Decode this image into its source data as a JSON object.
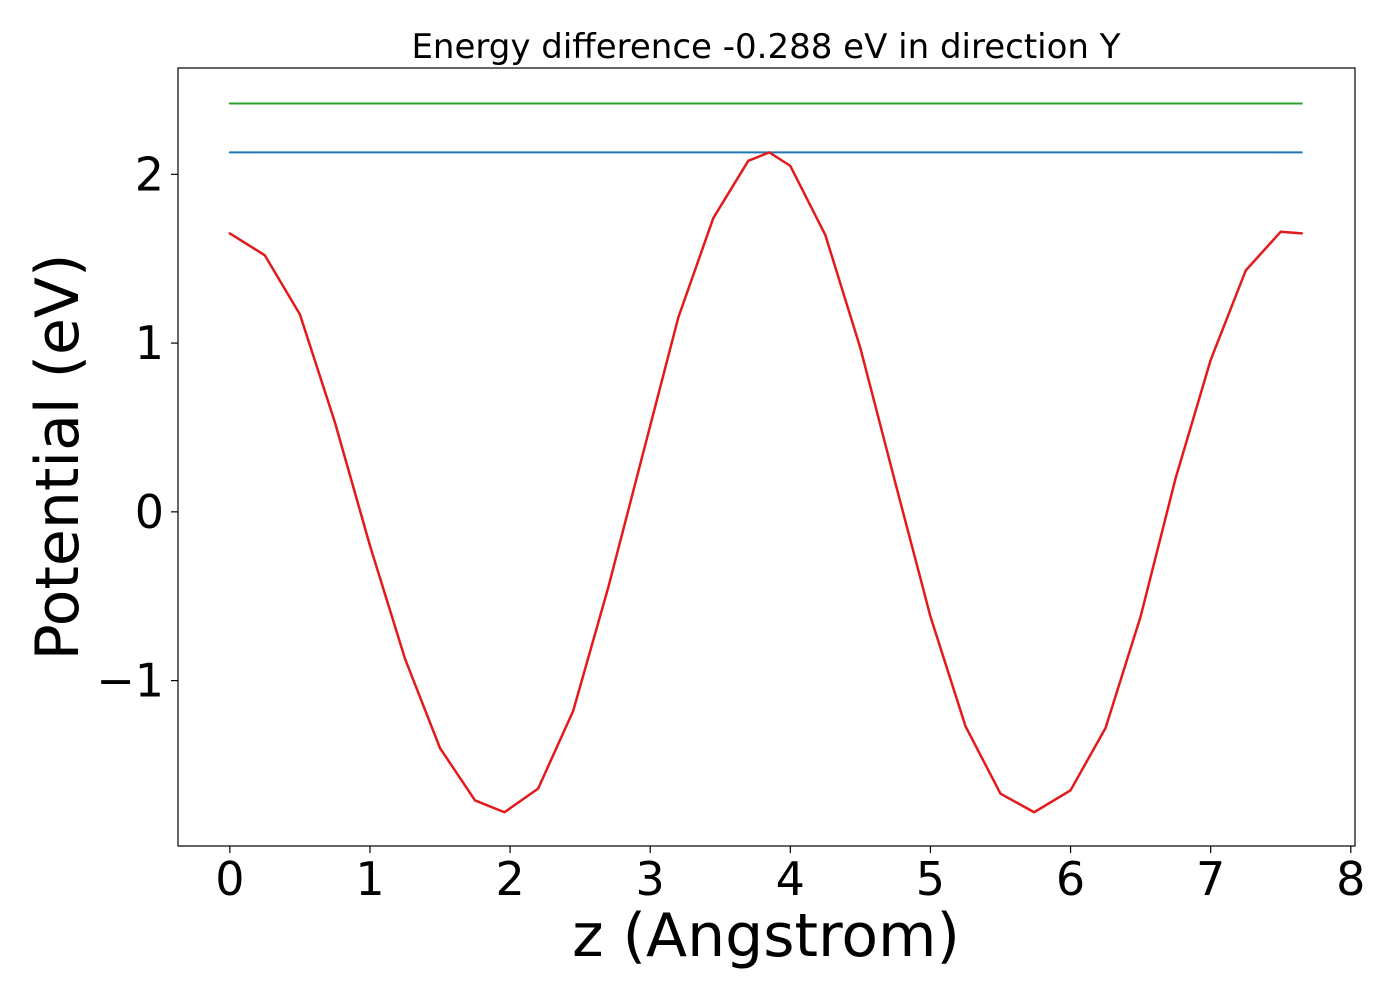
{
  "chart_data": {
    "type": "line",
    "title": "Energy difference -0.288 eV in direction Y",
    "xlabel": "z (Angstrom)",
    "ylabel": "Potential (eV)",
    "xlim": [
      -0.37,
      8.03
    ],
    "ylim": [
      -1.98,
      2.63
    ],
    "x_ticks": [
      {
        "value": 0,
        "label": "0"
      },
      {
        "value": 1,
        "label": "1"
      },
      {
        "value": 2,
        "label": "2"
      },
      {
        "value": 3,
        "label": "3"
      },
      {
        "value": 4,
        "label": "4"
      },
      {
        "value": 5,
        "label": "5"
      },
      {
        "value": 6,
        "label": "6"
      },
      {
        "value": 7,
        "label": "7"
      },
      {
        "value": 8,
        "label": "8"
      }
    ],
    "y_ticks": [
      {
        "value": -1,
        "label": "−1"
      },
      {
        "value": 0,
        "label": "0"
      },
      {
        "value": 1,
        "label": "1"
      },
      {
        "value": 2,
        "label": "2"
      }
    ],
    "grid": false,
    "legend": "none",
    "series": [
      {
        "color": "#2ca02c",
        "x": [
          0,
          7.65
        ],
        "y": [
          2.42,
          2.42
        ]
      },
      {
        "color": "#1f77b4",
        "x": [
          0,
          7.65
        ],
        "y": [
          2.13,
          2.13
        ]
      },
      {
        "color": "#e31a1c",
        "x": [
          0,
          0.25,
          0.5,
          0.75,
          1.0,
          1.25,
          1.5,
          1.75,
          1.96,
          2.2,
          2.45,
          2.7,
          2.95,
          3.2,
          3.45,
          3.7,
          3.85,
          4.0,
          4.25,
          4.5,
          4.75,
          5.0,
          5.25,
          5.5,
          5.74,
          6.0,
          6.25,
          6.5,
          6.75,
          7.0,
          7.25,
          7.5,
          7.65
        ],
        "y": [
          1.65,
          1.52,
          1.17,
          0.53,
          -0.2,
          -0.87,
          -1.4,
          -1.71,
          -1.78,
          -1.64,
          -1.18,
          -0.45,
          0.35,
          1.15,
          1.74,
          2.08,
          2.13,
          2.05,
          1.64,
          0.97,
          0.17,
          -0.62,
          -1.27,
          -1.67,
          -1.78,
          -1.65,
          -1.28,
          -0.62,
          0.2,
          0.9,
          1.43,
          1.66,
          1.65
        ]
      }
    ]
  }
}
